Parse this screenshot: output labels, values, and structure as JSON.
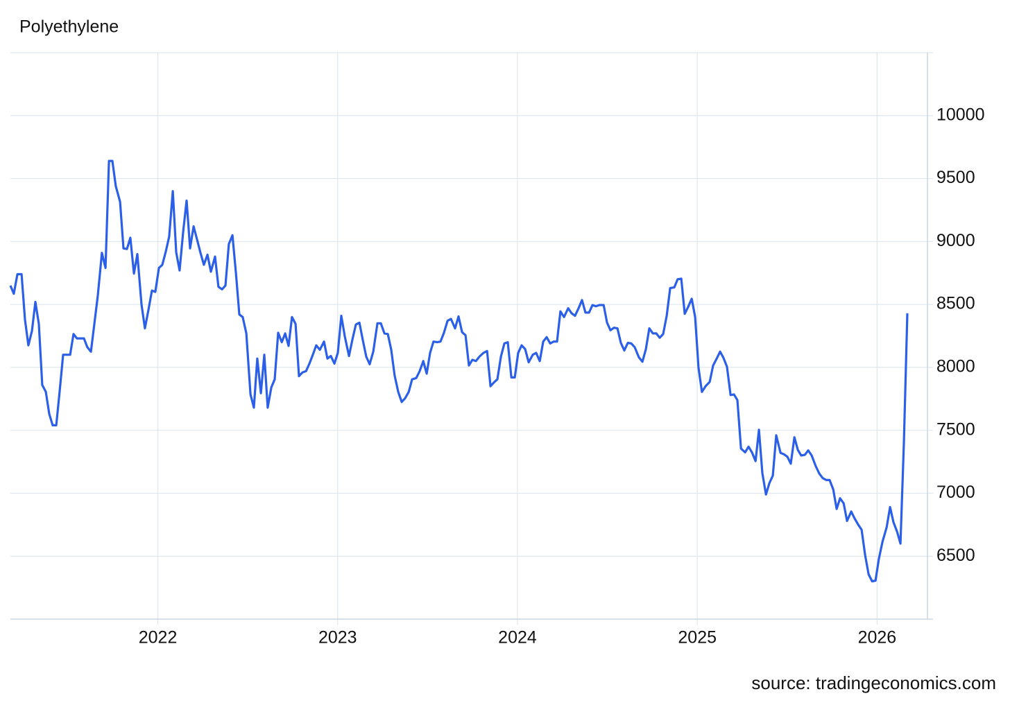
{
  "chart_data": {
    "type": "line",
    "title": "Polyethylene",
    "source": "source: tradingeconomics.com",
    "x": [
      2021.18,
      2021.199,
      2021.219,
      2021.242,
      2021.261,
      2021.28,
      2021.3,
      2021.319,
      2021.338,
      2021.357,
      2021.377,
      2021.396,
      2021.415,
      2021.435,
      2021.454,
      2021.473,
      2021.512,
      2021.531,
      2021.55,
      2021.589,
      2021.608,
      2021.628,
      2021.666,
      2021.689,
      2021.709,
      2021.728,
      2021.747,
      2021.766,
      2021.79,
      2021.809,
      2021.828,
      2021.847,
      2021.867,
      2021.886,
      2021.909,
      2021.928,
      2021.948,
      2021.967,
      2021.986,
      2022.006,
      2022.025,
      2022.044,
      2022.063,
      2022.083,
      2022.102,
      2022.121,
      2022.141,
      2022.16,
      2022.179,
      2022.199,
      2022.218,
      2022.237,
      2022.256,
      2022.276,
      2022.295,
      2022.318,
      2022.337,
      2022.357,
      2022.376,
      2022.395,
      2022.415,
      2022.434,
      2022.453,
      2022.472,
      2022.492,
      2022.515,
      2022.534,
      2022.553,
      2022.573,
      2022.592,
      2022.611,
      2022.631,
      2022.65,
      2022.669,
      2022.689,
      2022.708,
      2022.727,
      2022.746,
      2022.766,
      2022.785,
      2022.804,
      2022.824,
      2022.843,
      2022.862,
      2022.881,
      2022.901,
      2022.924,
      2022.943,
      2022.962,
      2022.982,
      2023.001,
      2023.02,
      2023.04,
      2023.063,
      2023.082,
      2023.101,
      2023.121,
      2023.14,
      2023.159,
      2023.178,
      2023.198,
      2023.221,
      2023.24,
      2023.26,
      2023.279,
      2023.298,
      2023.317,
      2023.337,
      2023.356,
      2023.375,
      2023.395,
      2023.414,
      2023.437,
      2023.456,
      2023.476,
      2023.495,
      2023.514,
      2023.533,
      2023.553,
      2023.572,
      2023.591,
      2023.611,
      2023.63,
      2023.653,
      2023.672,
      2023.692,
      2023.711,
      2023.73,
      2023.749,
      2023.769,
      2023.788,
      2023.811,
      2023.831,
      2023.85,
      2023.869,
      2023.888,
      2023.908,
      2023.927,
      2023.946,
      2023.966,
      2023.985,
      2024.004,
      2024.023,
      2024.043,
      2024.062,
      2024.085,
      2024.104,
      2024.124,
      2024.143,
      2024.162,
      2024.182,
      2024.201,
      2024.22,
      2024.239,
      2024.259,
      2024.282,
      2024.301,
      2024.32,
      2024.34,
      2024.359,
      2024.378,
      2024.398,
      2024.417,
      2024.436,
      2024.456,
      2024.479,
      2024.498,
      2024.517,
      2024.537,
      2024.556,
      2024.575,
      2024.594,
      2024.614,
      2024.633,
      2024.652,
      2024.675,
      2024.695,
      2024.714,
      2024.733,
      2024.753,
      2024.772,
      2024.791,
      2024.81,
      2024.83,
      2024.849,
      2024.872,
      2024.891,
      2024.911,
      2024.93,
      2024.949,
      2024.969,
      2024.988,
      2025.007,
      2025.026,
      2025.046,
      2025.069,
      2025.088,
      2025.108,
      2025.127,
      2025.146,
      2025.165,
      2025.185,
      2025.204,
      2025.223,
      2025.243,
      2025.266,
      2025.285,
      2025.304,
      2025.324,
      2025.343,
      2025.362,
      2025.382,
      2025.401,
      2025.42,
      2025.439,
      2025.463,
      2025.482,
      2025.501,
      2025.52,
      2025.54,
      2025.559,
      2025.578,
      2025.598,
      2025.617,
      2025.636,
      2025.659,
      2025.679,
      2025.698,
      2025.717,
      2025.736,
      2025.756,
      2025.775,
      2025.794,
      2025.814,
      2025.833,
      2025.856,
      2025.875,
      2025.895,
      2025.914,
      2025.933,
      2025.953,
      2025.972,
      2025.991,
      2026.01,
      2026.03,
      2026.053,
      2026.072,
      2026.091,
      2026.111,
      2026.13,
      2026.149,
      2026.168
    ],
    "series": [
      {
        "name": "Polyethylene",
        "color": "#2b5fe8",
        "values": [
          8650,
          8585,
          8740,
          8740,
          8380,
          8175,
          8290,
          8520,
          8345,
          7860,
          7805,
          7630,
          7540,
          7540,
          7810,
          8100,
          8100,
          8265,
          8230,
          8230,
          8160,
          8125,
          8570,
          8910,
          8790,
          9640,
          9640,
          9440,
          9315,
          8945,
          8940,
          9030,
          8745,
          8900,
          8500,
          8310,
          8460,
          8610,
          8600,
          8790,
          8815,
          8920,
          9040,
          9400,
          8915,
          8770,
          9080,
          9325,
          8945,
          9120,
          9015,
          8910,
          8815,
          8895,
          8760,
          8880,
          8640,
          8620,
          8650,
          8980,
          9050,
          8750,
          8420,
          8400,
          8270,
          7785,
          7680,
          8070,
          7795,
          8100,
          7680,
          7840,
          7905,
          8275,
          8200,
          8270,
          8170,
          8400,
          8345,
          7930,
          7960,
          7970,
          8030,
          8100,
          8175,
          8140,
          8205,
          8070,
          8090,
          8030,
          8115,
          8410,
          8245,
          8090,
          8220,
          8340,
          8355,
          8215,
          8085,
          8025,
          8125,
          8350,
          8350,
          8270,
          8265,
          8140,
          7935,
          7805,
          7725,
          7755,
          7805,
          7905,
          7915,
          7970,
          8050,
          7950,
          8115,
          8205,
          8200,
          8205,
          8275,
          8370,
          8385,
          8310,
          8405,
          8280,
          8255,
          8015,
          8060,
          8050,
          8085,
          8115,
          8130,
          7850,
          7880,
          7905,
          8085,
          8190,
          8200,
          7920,
          7920,
          8115,
          8175,
          8145,
          8040,
          8100,
          8115,
          8050,
          8205,
          8240,
          8190,
          8205,
          8205,
          8445,
          8400,
          8470,
          8430,
          8410,
          8470,
          8535,
          8435,
          8435,
          8495,
          8485,
          8495,
          8495,
          8355,
          8295,
          8315,
          8310,
          8195,
          8135,
          8195,
          8190,
          8160,
          8080,
          8045,
          8145,
          8310,
          8270,
          8270,
          8235,
          8265,
          8410,
          8630,
          8635,
          8700,
          8705,
          8425,
          8480,
          8545,
          8400,
          7995,
          7805,
          7850,
          7885,
          8015,
          8070,
          8125,
          8075,
          8005,
          7780,
          7785,
          7740,
          7355,
          7325,
          7370,
          7325,
          7255,
          7505,
          7160,
          6990,
          7080,
          7140,
          7460,
          7320,
          7310,
          7290,
          7235,
          7445,
          7345,
          7300,
          7305,
          7340,
          7300,
          7215,
          7155,
          7120,
          7105,
          7105,
          7030,
          6875,
          6960,
          6920,
          6780,
          6855,
          6800,
          6750,
          6710,
          6510,
          6355,
          6300,
          6305,
          6480,
          6615,
          6730,
          6890,
          6770,
          6695,
          6600,
          7395,
          8430
        ]
      }
    ],
    "xlim": [
      2021.18,
      2026.28
    ],
    "xticks": [
      2022,
      2023,
      2024,
      2025,
      2026
    ],
    "ylim": [
      6000,
      10500
    ],
    "yticks": [
      6500,
      7000,
      7500,
      8000,
      8500,
      9000,
      9500,
      10000
    ],
    "grid": true
  }
}
